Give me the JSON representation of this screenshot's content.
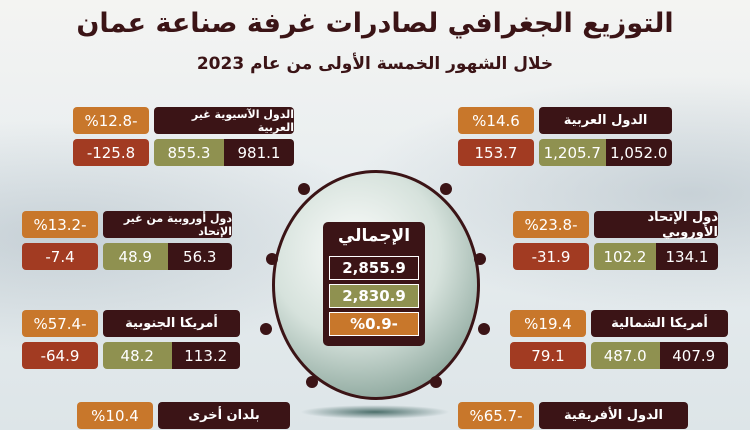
{
  "header": {
    "title": "التوزيع الجغرافي لصادرات غرفة صناعة عمان",
    "subtitle": "خلال الشهور الخمسة الأولى من عام 2023"
  },
  "total": {
    "label": "الإجمالي",
    "value_1": "2,855.9",
    "value_2": "2,830.9",
    "pct": "%0.9-"
  },
  "regions": [
    {
      "name": "الدول العربية",
      "pct": "%14.6",
      "change": "153.7",
      "value_2": "1,205.7",
      "value_1": "1,052.0"
    },
    {
      "name": "دول الإتحاد الأوروبي",
      "pct": "%23.8-",
      "change": "-31.9",
      "value_2": "102.2",
      "value_1": "134.1"
    },
    {
      "name": "أمريكا الشمالية",
      "pct": "%19.4",
      "change": "79.1",
      "value_2": "487.0",
      "value_1": "407.9"
    },
    {
      "name": "الدول الأفريقية",
      "pct": "%65.7-"
    },
    {
      "name": "الدول الآسيوية غير العربية",
      "pct": "%12.8-",
      "change": "-125.8",
      "value_2": "855.3",
      "value_1": "981.1"
    },
    {
      "name": "دول أوروبية من غير الإتحاد",
      "pct": "%13.2-",
      "change": "-7.4",
      "value_2": "48.9",
      "value_1": "56.3"
    },
    {
      "name": "أمريكا الجنوبية",
      "pct": "%57.4-",
      "change": "-64.9",
      "value_2": "48.2",
      "value_1": "113.2"
    },
    {
      "name": "بلدان أخرى",
      "pct": "%10.4"
    }
  ],
  "colors": {
    "title_box": "#3b1416",
    "pct_box": "#c8772b",
    "change_box": "#a23b22",
    "current_box": "#8f9150"
  }
}
